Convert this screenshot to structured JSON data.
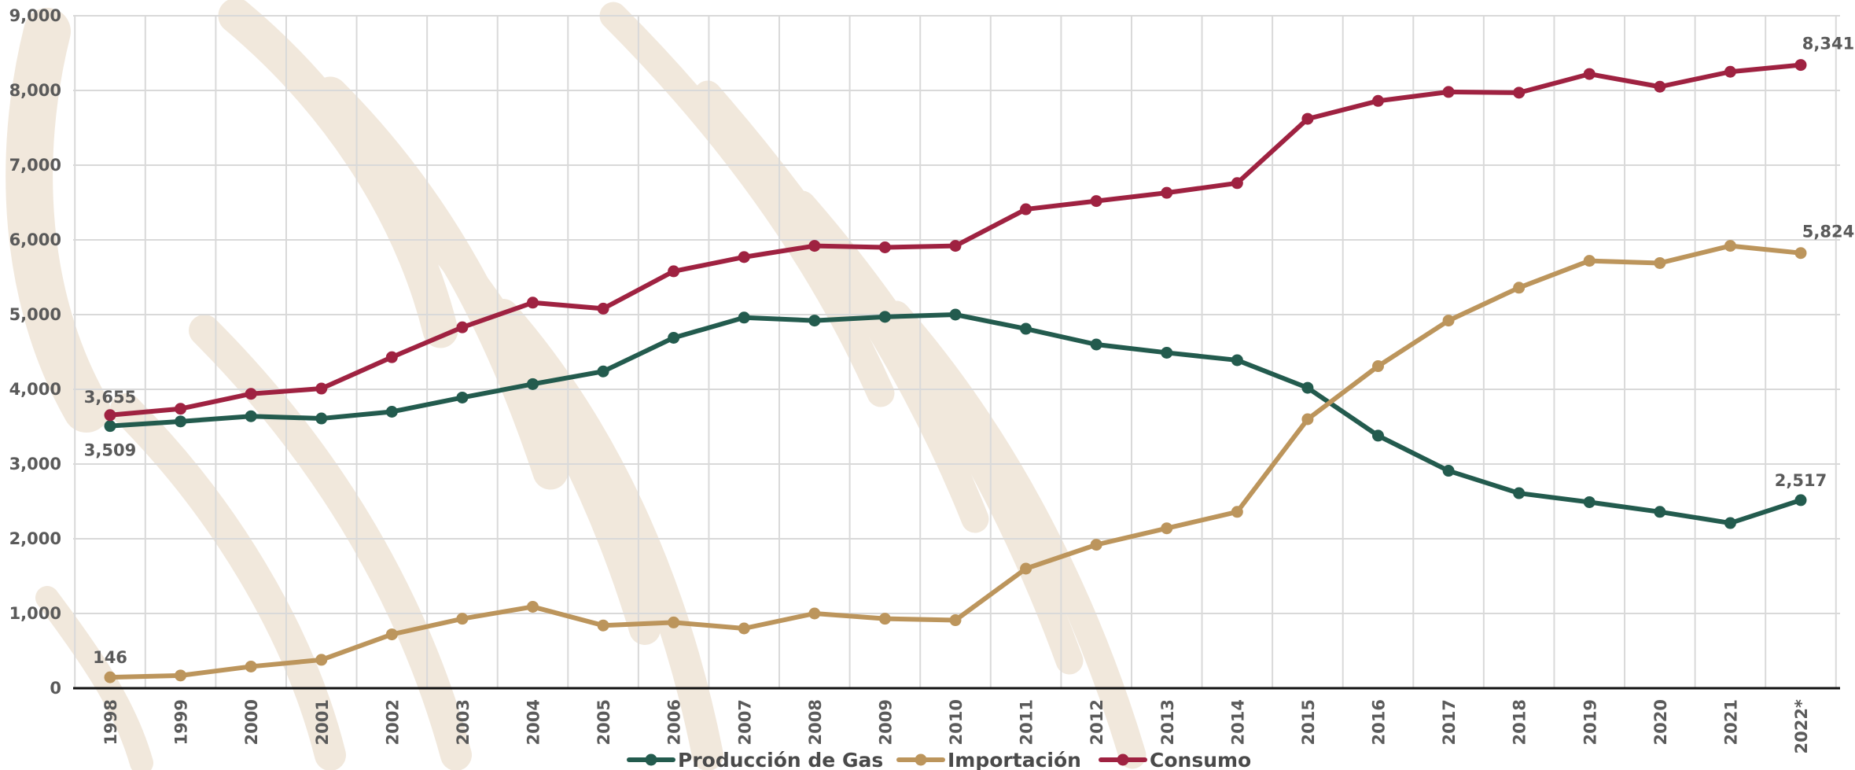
{
  "chart_data": {
    "type": "line",
    "title": "",
    "xlabel": "",
    "ylabel": "",
    "categories": [
      "1998",
      "1999",
      "2000",
      "2001",
      "2002",
      "2003",
      "2004",
      "2005",
      "2006",
      "2007",
      "2008",
      "2009",
      "2010",
      "2011",
      "2012",
      "2013",
      "2014",
      "2015",
      "2016",
      "2017",
      "2018",
      "2019",
      "2020",
      "2021",
      "2022*"
    ],
    "ylim": [
      0,
      9000
    ],
    "yticks": [
      0,
      1000,
      2000,
      3000,
      4000,
      5000,
      6000,
      7000,
      8000,
      9000
    ],
    "ytick_labels": [
      "0",
      "1,000",
      "2,000",
      "3,000",
      "4,000",
      "5,000",
      "6,000",
      "7,000",
      "8,000",
      "9,000"
    ],
    "grid": true,
    "legend_position": "bottom-center",
    "series": [
      {
        "name": "Producción de Gas",
        "color": "#235b4e",
        "values": [
          3509,
          3570,
          3640,
          3610,
          3700,
          3890,
          4070,
          4240,
          4690,
          4960,
          4920,
          4970,
          5000,
          4810,
          4600,
          4490,
          4390,
          4020,
          3380,
          2910,
          2610,
          2490,
          2360,
          2210,
          2517
        ]
      },
      {
        "name": "Importación",
        "color": "#bc955c",
        "values": [
          146,
          170,
          290,
          380,
          720,
          930,
          1090,
          840,
          880,
          800,
          1000,
          930,
          910,
          1600,
          1920,
          2140,
          2360,
          3600,
          4310,
          4920,
          5360,
          5720,
          5690,
          5920,
          5824
        ]
      },
      {
        "name": "Consumo",
        "color": "#9f2241",
        "values": [
          3655,
          3740,
          3940,
          4010,
          4430,
          4830,
          5160,
          5080,
          5580,
          5770,
          5920,
          5900,
          5920,
          6410,
          6520,
          6630,
          6760,
          7620,
          7860,
          7980,
          7970,
          8220,
          8050,
          8250,
          8341
        ]
      }
    ],
    "annotations": [
      {
        "series": 2,
        "index": 0,
        "text": "3,655"
      },
      {
        "series": 0,
        "index": 0,
        "text": "3,509"
      },
      {
        "series": 1,
        "index": 0,
        "text": "146"
      },
      {
        "series": 2,
        "index": 24,
        "text": "8,341"
      },
      {
        "series": 1,
        "index": 24,
        "text": "5,824"
      },
      {
        "series": 0,
        "index": 24,
        "text": "2,517"
      }
    ]
  }
}
